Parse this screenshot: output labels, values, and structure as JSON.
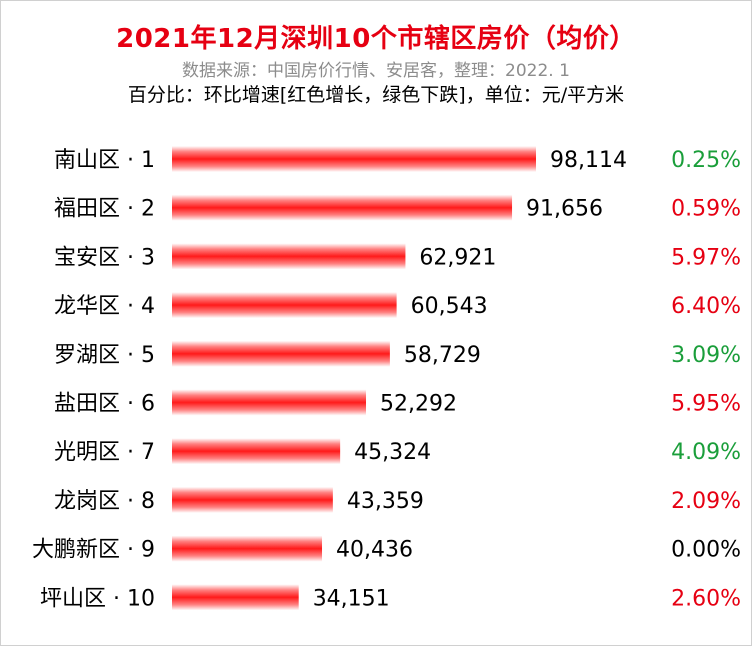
{
  "header": {
    "title": "2021年12月深圳10个市辖区房价（均价）",
    "subtitle": "数据来源：中国房价行情、安居客，整理：2022. 1",
    "note": "百分比：环比增速[红色增长，绿色下跌]，单位：元/平方米"
  },
  "colors": {
    "title": "#e60012",
    "bar": "#ff1a1a",
    "increase": "#e60012",
    "decrease": "#1a9e3a",
    "flat": "#000000"
  },
  "chart_data": {
    "type": "bar",
    "orientation": "horizontal",
    "categories": [
      "南山区 · 1",
      "福田区 · 2",
      "宝安区 · 3",
      "龙华区 · 4",
      "罗湖区 · 5",
      "盐田区 · 6",
      "光明区 · 7",
      "龙岗区 · 8",
      "大鹏新区 · 9",
      "坪山区 · 10"
    ],
    "values": [
      98114,
      91656,
      62921,
      60543,
      58729,
      52292,
      45324,
      43359,
      40436,
      34151
    ],
    "value_labels": [
      "98,114",
      "91,656",
      "62,921",
      "60,543",
      "58,729",
      "52,292",
      "45,324",
      "43,359",
      "40,436",
      "34,151"
    ],
    "change_labels": [
      "0.25%",
      "0.59%",
      "5.97%",
      "6.40%",
      "3.09%",
      "5.95%",
      "4.09%",
      "2.09%",
      "0.00%",
      "2.60%"
    ],
    "change_direction": [
      "down",
      "up",
      "up",
      "up",
      "down",
      "up",
      "down",
      "up",
      "flat",
      "up"
    ],
    "unit": "元/平方米",
    "grid": false,
    "legend": "none"
  }
}
